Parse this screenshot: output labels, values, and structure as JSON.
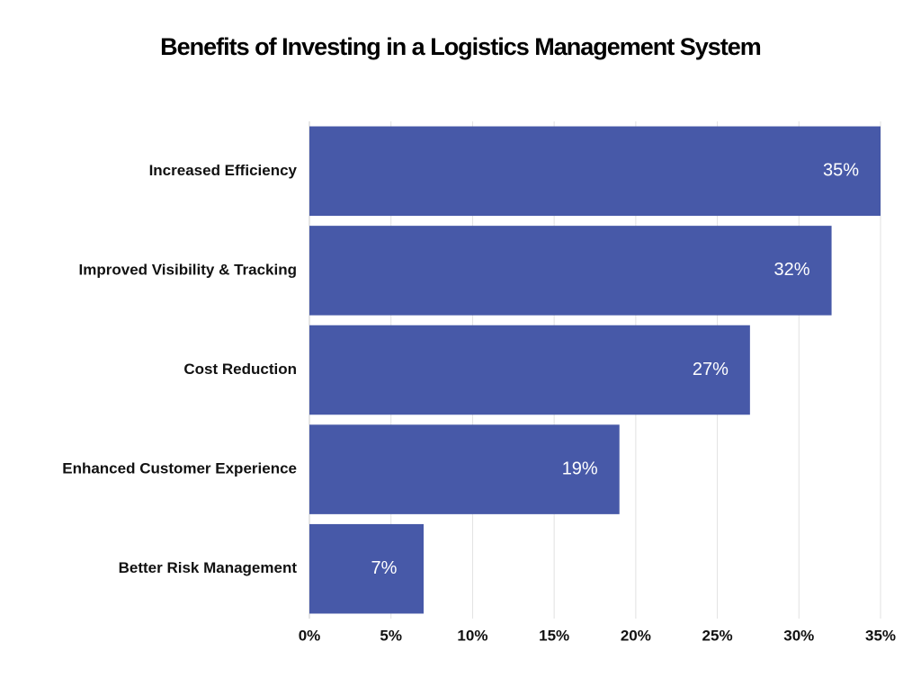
{
  "chart_data": {
    "type": "bar",
    "horizontal": true,
    "title": "Benefits of Investing in a Logistics Management System",
    "categories": [
      "Increased Efficiency",
      "Improved Visibility & Tracking",
      "Cost Reduction",
      "Enhanced Customer Experience",
      "Better Risk Management"
    ],
    "values": [
      35,
      32,
      27,
      19,
      7
    ],
    "value_labels": [
      "35%",
      "32%",
      "27%",
      "19%",
      "7%"
    ],
    "color": "#4759a8",
    "xlim": [
      0,
      35
    ],
    "xticks": [
      {
        "value": 0,
        "label": "0%"
      },
      {
        "value": 5,
        "label": "5%"
      },
      {
        "value": 10,
        "label": "10%"
      },
      {
        "value": 15,
        "label": "15%"
      },
      {
        "value": 20,
        "label": "20%"
      },
      {
        "value": 25,
        "label": "25%"
      },
      {
        "value": 30,
        "label": "30%"
      },
      {
        "value": 35,
        "label": "35%"
      }
    ],
    "grid": true
  }
}
